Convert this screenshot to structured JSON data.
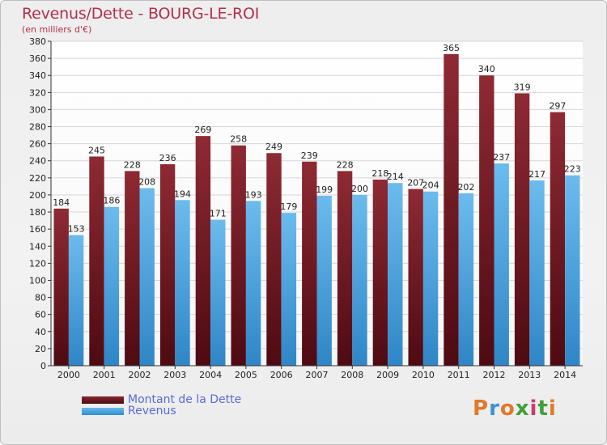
{
  "header": {
    "title": "Revenus/Dette - BOURG-LE-ROI",
    "subtitle": "(en milliers d'€)"
  },
  "legend": {
    "dette_label": "Montant de la Dette",
    "revenus_label": "Revenus"
  },
  "logo": {
    "text": "Proxiti",
    "letters": [
      {
        "ch": "P",
        "color": "#e07a2a"
      },
      {
        "ch": "r",
        "color": "#3d8fd6"
      },
      {
        "ch": "o",
        "color": "#e07a2a"
      },
      {
        "ch": "x",
        "color": "#3fa03a"
      },
      {
        "ch": "i",
        "color": "#d13a6a"
      },
      {
        "ch": "t",
        "color": "#3fa03a"
      },
      {
        "ch": "i",
        "color": "#e07a2a"
      }
    ]
  },
  "colors": {
    "dette": "#7a1a22",
    "revenus": "#4fa6e3",
    "title": "#b0304a",
    "legend_text": "#5a6ad8"
  },
  "chart_data": {
    "type": "bar",
    "title": "Revenus/Dette - BOURG-LE-ROI",
    "subtitle": "(en milliers d'€)",
    "categories": [
      "2000",
      "2001",
      "2002",
      "2003",
      "2004",
      "2005",
      "2006",
      "2007",
      "2008",
      "2009",
      "2010",
      "2011",
      "2012",
      "2013",
      "2014"
    ],
    "series": [
      {
        "name": "Montant de la Dette",
        "values": [
          184,
          245,
          228,
          236,
          269,
          258,
          249,
          239,
          228,
          218,
          207,
          365,
          340,
          319,
          297
        ]
      },
      {
        "name": "Revenus",
        "values": [
          153,
          186,
          208,
          194,
          171,
          193,
          179,
          199,
          200,
          214,
          204,
          202,
          237,
          217,
          223
        ]
      }
    ],
    "ylim": [
      0,
      380
    ],
    "yticks": [
      0,
      20,
      40,
      60,
      80,
      100,
      120,
      140,
      160,
      180,
      200,
      220,
      240,
      260,
      280,
      300,
      320,
      340,
      360,
      380
    ],
    "grid": true,
    "legend": "bottom-left"
  }
}
